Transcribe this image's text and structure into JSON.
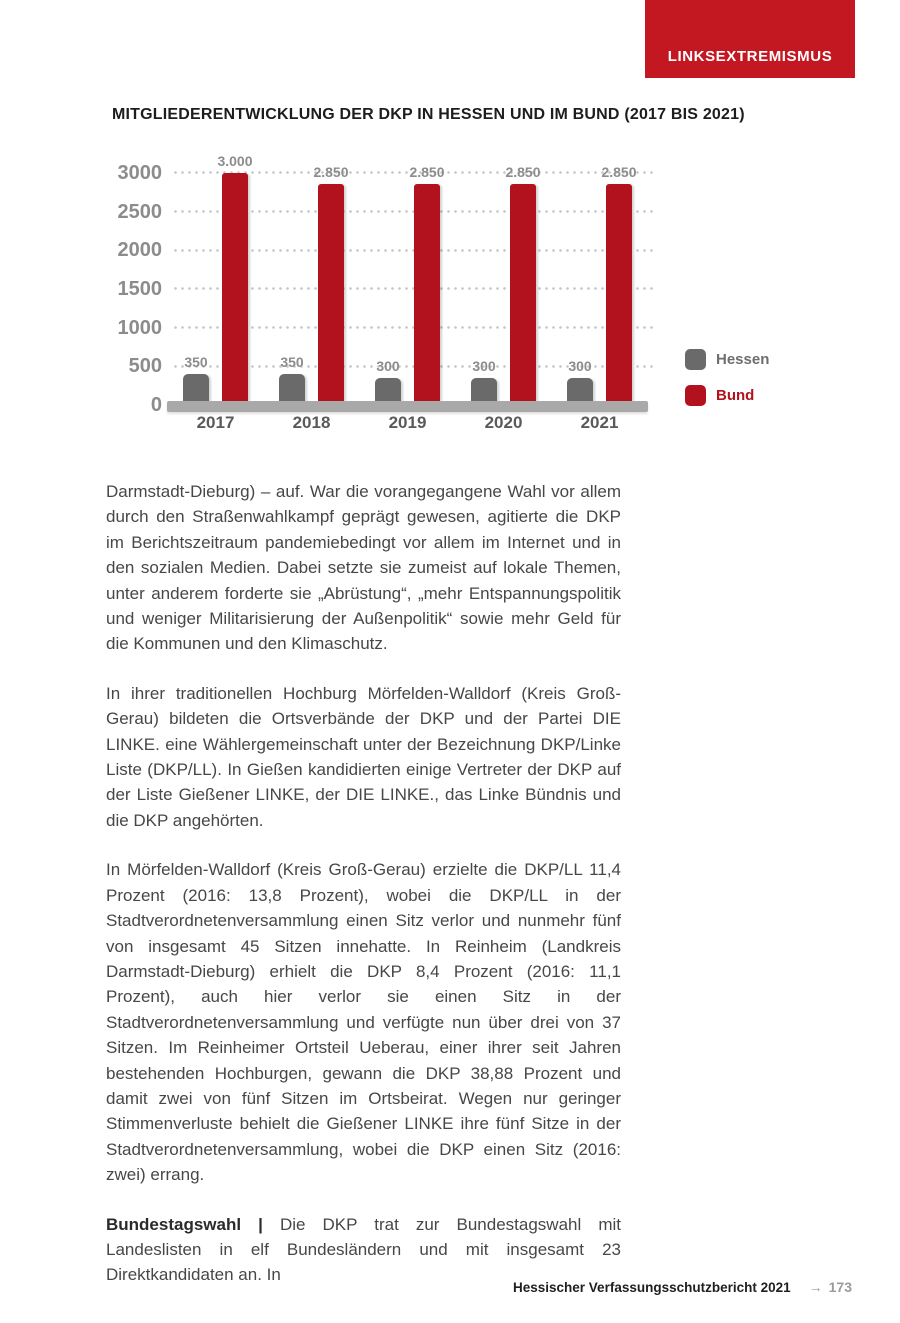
{
  "badge": {
    "label": "LINKSEXTREMISMUS"
  },
  "chart_title": "MITGLIEDERENTWICKLUNG DER DKP IN HESSEN UND IM BUND (2017 BIS 2021)",
  "chart_data": {
    "type": "bar",
    "title": "MITGLIEDERENTWICKLUNG DER DKP IN HESSEN UND IM BUND (2017 BIS 2021)",
    "categories": [
      "2017",
      "2018",
      "2019",
      "2020",
      "2021"
    ],
    "series": [
      {
        "name": "Hessen",
        "color": "#6a6a6a",
        "values": [
          350,
          350,
          300,
          300,
          300
        ],
        "value_labels": [
          "350",
          "350",
          "300",
          "300",
          "300"
        ]
      },
      {
        "name": "Bund",
        "color": "#b2121d",
        "values": [
          3000,
          2850,
          2850,
          2850,
          2850
        ],
        "value_labels": [
          "3.000",
          "2.850",
          "2.850",
          "2.850",
          "2.850"
        ]
      }
    ],
    "y_ticks": [
      3000,
      2500,
      2000,
      1500,
      1000,
      500,
      0
    ],
    "ylim": [
      0,
      3000
    ],
    "grid": "dotted-horizontal",
    "legend_position": "right"
  },
  "body": {
    "paragraphs": [
      "Darmstadt-Dieburg) – auf. War die vorangegangene Wahl vor allem durch den Straßenwahlkampf geprägt gewesen, agitierte die DKP im Berichtszeitraum pandemiebedingt vor allem im Internet und in den sozialen Medien. Dabei setzte sie zumeist auf lokale Themen, unter anderem forderte sie „Abrüstung“, „mehr Entspannungspolitik und weniger Militarisierung der Außenpolitik“ sowie mehr Geld für die Kommunen und den Klimaschutz.",
      "In ihrer traditionellen Hochburg Mörfelden-Walldorf (Kreis Groß-Gerau) bildeten die Ortsverbände der DKP und der Partei DIE LINKE. eine Wählergemeinschaft unter der Bezeichnung DKP/Linke Liste (DKP/LL). In Gießen kandidierten einige Vertreter der DKP auf der Liste Gießener LINKE, der DIE LINKE., das Linke Bündnis und die DKP angehörten.",
      "In Mörfelden-Walldorf (Kreis Groß-Gerau) erzielte die DKP/LL 11,4 Prozent (2016: 13,8 Prozent), wobei die DKP/LL in der Stadtverordnetenversammlung einen Sitz verlor und nunmehr fünf von insgesamt 45 Sitzen innehatte. In Reinheim (Landkreis Darmstadt-Dieburg) erhielt die DKP 8,4 Prozent (2016: 11,1 Prozent), auch hier verlor sie einen Sitz in der Stadtverordnetenversammlung und verfügte nun über drei von 37 Sitzen. Im Reinheimer Ortsteil Ueberau, einer ihrer seit Jahren bestehenden Hochburgen, gewann die DKP 38,88 Prozent und damit zwei von fünf Sitzen im Ortsbeirat. Wegen nur geringer Stimmenverluste behielt die Gießener LINKE ihre fünf Sitze in der Stadtverordnetenversammlung, wobei die DKP einen Sitz (2016: zwei) errang."
    ],
    "last_paragraph": {
      "lead": "Bundestagswahl | ",
      "text": "Die DKP trat zur Bundestagswahl mit Landeslisten in elf Bundesländern und mit insgesamt 23 Direktkandidaten an. In"
    }
  },
  "footer": {
    "report_title": "Hessischer Verfassungsschutzbericht 2021",
    "arrow": "→",
    "page_number": "173"
  },
  "colors": {
    "badge_red": "#c31722",
    "accent_red": "#b2121d",
    "bar_gray": "#6a6a6a",
    "baseline_gray": "#a9a9a9"
  }
}
